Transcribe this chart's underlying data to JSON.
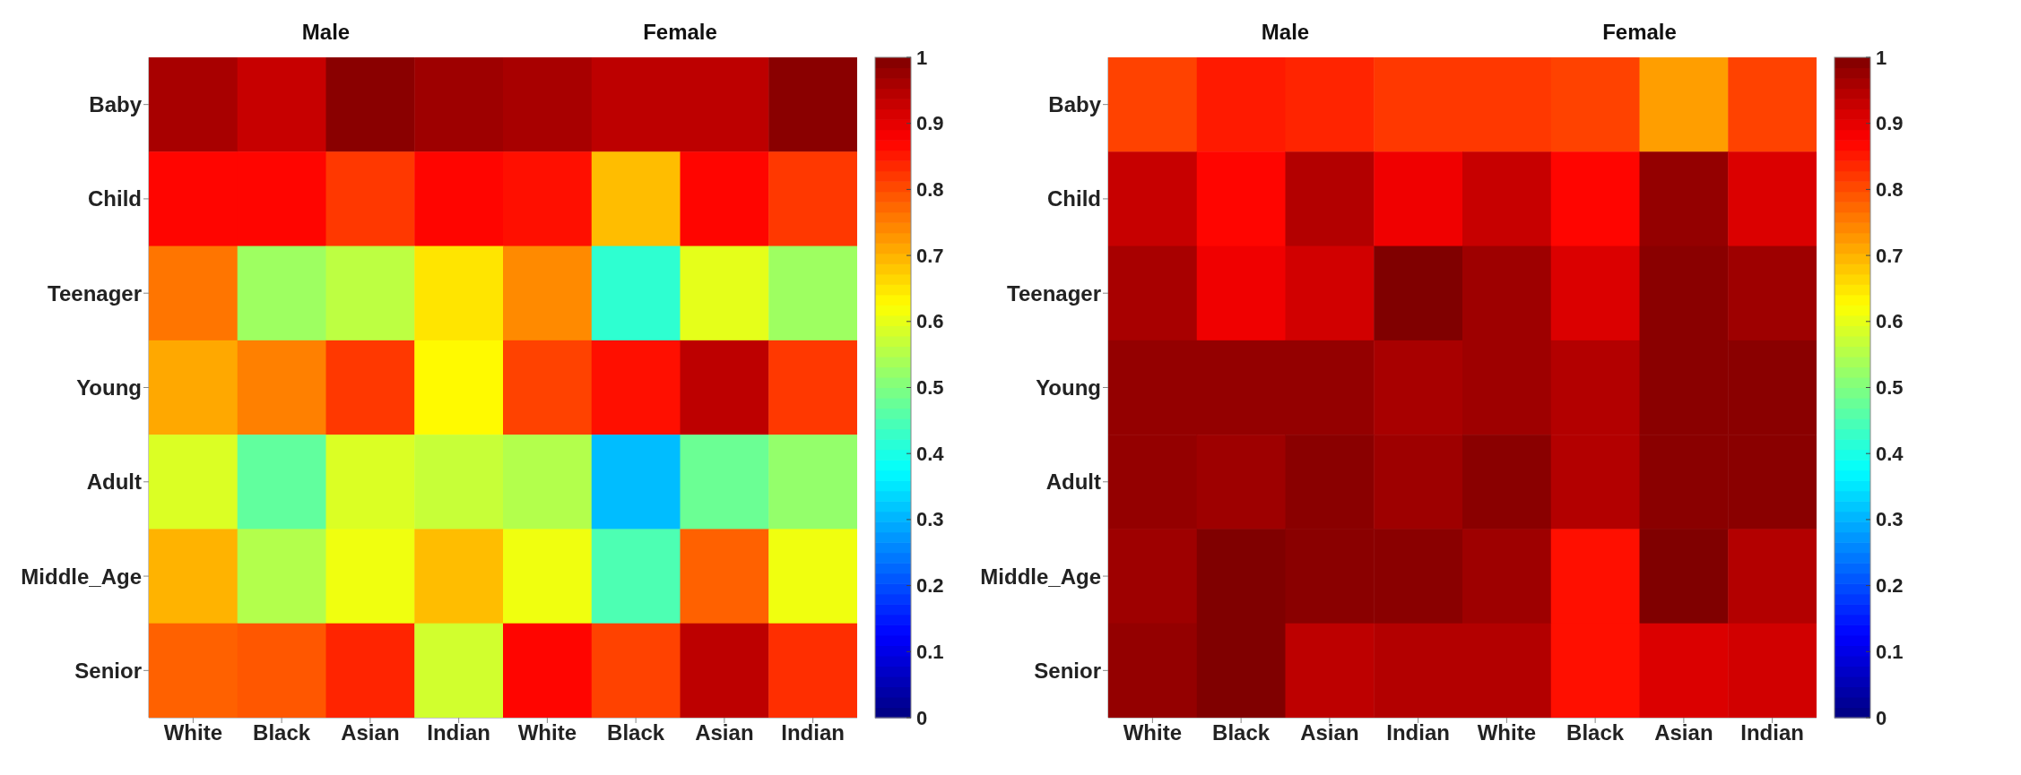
{
  "chart_data": [
    {
      "type": "heatmap",
      "annotations": [
        "Male",
        "Female"
      ],
      "categories": [
        "White",
        "Black",
        "Asian",
        "Indian",
        "White",
        "Black",
        "Asian",
        "Indian"
      ],
      "y_categories": [
        "Baby",
        "Child",
        "Teenager",
        "Young",
        "Adult",
        "Middle_Age",
        "Senior"
      ],
      "cells": [
        [
          0.96,
          0.93,
          0.99,
          0.97,
          0.96,
          0.94,
          0.94,
          0.99
        ],
        [
          0.87,
          0.87,
          0.82,
          0.87,
          0.86,
          0.69,
          0.87,
          0.82
        ],
        [
          0.76,
          0.53,
          0.56,
          0.65,
          0.74,
          0.42,
          0.6,
          0.53
        ],
        [
          0.71,
          0.75,
          0.82,
          0.63,
          0.81,
          0.86,
          0.94,
          0.82
        ],
        [
          0.59,
          0.47,
          0.59,
          0.57,
          0.55,
          0.31,
          0.48,
          0.52
        ],
        [
          0.7,
          0.55,
          0.61,
          0.69,
          0.61,
          0.45,
          0.78,
          0.61
        ],
        [
          0.78,
          0.79,
          0.84,
          0.58,
          0.87,
          0.81,
          0.94,
          0.83
        ]
      ],
      "clim": [
        0,
        1
      ],
      "cticks": [
        0,
        0.1,
        0.2,
        0.3,
        0.4,
        0.5,
        0.6,
        0.7,
        0.8,
        0.9,
        1
      ]
    },
    {
      "type": "heatmap",
      "annotations": [
        "Male",
        "Female"
      ],
      "categories": [
        "White",
        "Black",
        "Asian",
        "Indian",
        "White",
        "Black",
        "Asian",
        "Indian"
      ],
      "y_categories": [
        "Baby",
        "Child",
        "Teenager",
        "Young",
        "Adult",
        "Middle_Age",
        "Senior"
      ],
      "cells": [
        [
          0.81,
          0.85,
          0.84,
          0.82,
          0.82,
          0.81,
          0.72,
          0.81
        ],
        [
          0.93,
          0.87,
          0.95,
          0.89,
          0.93,
          0.87,
          0.98,
          0.91
        ],
        [
          0.96,
          0.89,
          0.92,
          1.0,
          0.97,
          0.91,
          0.99,
          0.97
        ],
        [
          0.98,
          0.98,
          0.98,
          0.96,
          0.97,
          0.95,
          0.99,
          0.99
        ],
        [
          0.98,
          0.97,
          0.99,
          0.97,
          0.99,
          0.95,
          0.99,
          0.99
        ],
        [
          0.97,
          1.0,
          0.99,
          0.99,
          0.97,
          0.86,
          1.0,
          0.95
        ],
        [
          0.98,
          1.0,
          0.94,
          0.95,
          0.95,
          0.86,
          0.91,
          0.92
        ]
      ],
      "clim": [
        0,
        1
      ],
      "cticks": [
        0,
        0.1,
        0.2,
        0.3,
        0.4,
        0.5,
        0.6,
        0.7,
        0.8,
        0.9,
        1
      ]
    }
  ]
}
